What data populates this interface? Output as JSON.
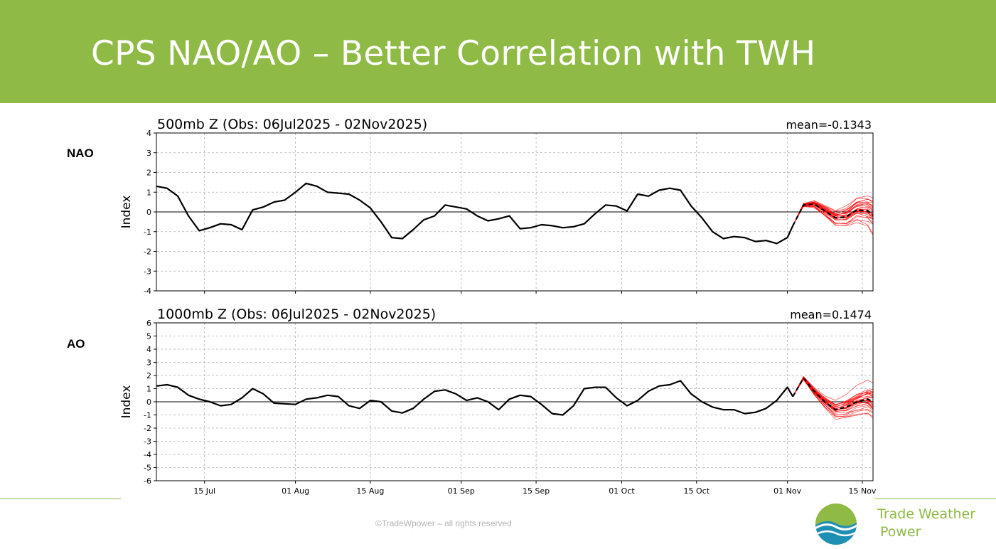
{
  "slide": {
    "title": "CPS NAO/AO – Better Correlation with TWH",
    "footer": "©TradeWpower – all rights reserved",
    "brand_line1": "Trade Weather",
    "brand_line2": "Power"
  },
  "colors": {
    "header": "#8fba45",
    "observed": "#000000",
    "ensemble": "#ff0000",
    "brand": "#8fba45",
    "logo_blue": "#1e90b4"
  },
  "chart_data": [
    {
      "type": "line",
      "side_label": "NAO",
      "title": "500mb Z (Obs: 06Jul2025 - 02Nov2025)",
      "annotation": "mean=-0.1343",
      "ylabel": "Index",
      "xlabel": "",
      "ylim": [
        -4,
        4
      ],
      "yticks": [
        -4,
        -3,
        -2,
        -1,
        0,
        1,
        2,
        3,
        4
      ],
      "xlim": [
        "2025-07-06",
        "2025-11-17"
      ],
      "xtick_dates": [
        "2025-07-15",
        "2025-08-01",
        "2025-08-15",
        "2025-09-01",
        "2025-09-15",
        "2025-10-01",
        "2025-10-15",
        "2025-11-01",
        "2025-11-15"
      ],
      "xtick_labels": [
        "15 Jul",
        "01 Aug",
        "15 Aug",
        "01 Sep",
        "15 Sep",
        "01 Oct",
        "15 Oct",
        "01 Nov",
        "15 Nov"
      ],
      "grid": true,
      "observed": {
        "x": [
          "2025-07-06",
          "2025-07-08",
          "2025-07-10",
          "2025-07-12",
          "2025-07-14",
          "2025-07-16",
          "2025-07-18",
          "2025-07-20",
          "2025-07-22",
          "2025-07-24",
          "2025-07-26",
          "2025-07-28",
          "2025-07-30",
          "2025-08-01",
          "2025-08-03",
          "2025-08-05",
          "2025-08-07",
          "2025-08-09",
          "2025-08-11",
          "2025-08-13",
          "2025-08-15",
          "2025-08-17",
          "2025-08-19",
          "2025-08-21",
          "2025-08-23",
          "2025-08-25",
          "2025-08-27",
          "2025-08-29",
          "2025-08-31",
          "2025-09-02",
          "2025-09-04",
          "2025-09-06",
          "2025-09-08",
          "2025-09-10",
          "2025-09-12",
          "2025-09-14",
          "2025-09-16",
          "2025-09-18",
          "2025-09-20",
          "2025-09-22",
          "2025-09-24",
          "2025-09-26",
          "2025-09-28",
          "2025-09-30",
          "2025-10-02",
          "2025-10-04",
          "2025-10-06",
          "2025-10-08",
          "2025-10-10",
          "2025-10-12",
          "2025-10-14",
          "2025-10-16",
          "2025-10-18",
          "2025-10-20",
          "2025-10-22",
          "2025-10-24",
          "2025-10-26",
          "2025-10-28",
          "2025-10-30",
          "2025-11-01",
          "2025-11-02"
        ],
        "y": [
          1.3,
          1.2,
          0.8,
          -0.2,
          -0.95,
          -0.8,
          -0.6,
          -0.65,
          -0.9,
          0.1,
          0.25,
          0.5,
          0.6,
          1.0,
          1.45,
          1.3,
          1.0,
          0.95,
          0.9,
          0.6,
          0.2,
          -0.5,
          -1.3,
          -1.35,
          -0.9,
          -0.4,
          -0.2,
          0.35,
          0.25,
          0.15,
          -0.2,
          -0.45,
          -0.35,
          -0.2,
          -0.85,
          -0.8,
          -0.65,
          -0.7,
          -0.8,
          -0.75,
          -0.6,
          -0.1,
          0.35,
          0.3,
          0.05,
          0.9,
          0.8,
          1.1,
          1.2,
          1.1,
          0.3,
          -0.3,
          -1.0,
          -1.35,
          -1.25,
          -1.3,
          -1.5,
          -1.45,
          -1.6,
          -1.3,
          -0.7
        ]
      },
      "ensemble_mean": {
        "x": [
          "2025-11-02",
          "2025-11-04",
          "2025-11-06",
          "2025-11-08",
          "2025-11-10",
          "2025-11-12",
          "2025-11-14",
          "2025-11-16",
          "2025-11-17"
        ],
        "y": [
          -0.7,
          0.35,
          0.4,
          0.05,
          -0.3,
          -0.25,
          0.1,
          0.05,
          -0.15
        ]
      }
    },
    {
      "type": "line",
      "side_label": "AO",
      "title": "1000mb Z (Obs: 06Jul2025 - 02Nov2025)",
      "annotation": "mean=0.1474",
      "ylabel": "Index",
      "xlabel": "",
      "ylim": [
        -6,
        6
      ],
      "yticks": [
        -6,
        -5,
        -4,
        -3,
        -2,
        -1,
        0,
        1,
        2,
        3,
        4,
        5,
        6
      ],
      "xlim": [
        "2025-07-06",
        "2025-11-17"
      ],
      "xtick_dates": [
        "2025-07-15",
        "2025-08-01",
        "2025-08-15",
        "2025-09-01",
        "2025-09-15",
        "2025-10-01",
        "2025-10-15",
        "2025-11-01",
        "2025-11-15"
      ],
      "xtick_labels": [
        "15 Jul",
        "01 Aug",
        "15 Aug",
        "01 Sep",
        "15 Sep",
        "01 Oct",
        "15 Oct",
        "01 Nov",
        "15 Nov"
      ],
      "grid": true,
      "observed": {
        "x": [
          "2025-07-06",
          "2025-07-08",
          "2025-07-10",
          "2025-07-12",
          "2025-07-14",
          "2025-07-16",
          "2025-07-18",
          "2025-07-20",
          "2025-07-22",
          "2025-07-24",
          "2025-07-26",
          "2025-07-28",
          "2025-07-30",
          "2025-08-01",
          "2025-08-03",
          "2025-08-05",
          "2025-08-07",
          "2025-08-09",
          "2025-08-11",
          "2025-08-13",
          "2025-08-15",
          "2025-08-17",
          "2025-08-19",
          "2025-08-21",
          "2025-08-23",
          "2025-08-25",
          "2025-08-27",
          "2025-08-29",
          "2025-08-31",
          "2025-09-02",
          "2025-09-04",
          "2025-09-06",
          "2025-09-08",
          "2025-09-10",
          "2025-09-12",
          "2025-09-14",
          "2025-09-16",
          "2025-09-18",
          "2025-09-20",
          "2025-09-22",
          "2025-09-24",
          "2025-09-26",
          "2025-09-28",
          "2025-09-30",
          "2025-10-02",
          "2025-10-04",
          "2025-10-06",
          "2025-10-08",
          "2025-10-10",
          "2025-10-12",
          "2025-10-14",
          "2025-10-16",
          "2025-10-18",
          "2025-10-20",
          "2025-10-22",
          "2025-10-24",
          "2025-10-26",
          "2025-10-28",
          "2025-10-30",
          "2025-11-01",
          "2025-11-02"
        ],
        "y": [
          1.2,
          1.3,
          1.1,
          0.5,
          0.2,
          0.0,
          -0.3,
          -0.2,
          0.3,
          1.0,
          0.6,
          -0.1,
          -0.15,
          -0.2,
          0.2,
          0.3,
          0.5,
          0.4,
          -0.3,
          -0.5,
          0.1,
          0.0,
          -0.7,
          -0.85,
          -0.5,
          0.2,
          0.8,
          0.9,
          0.6,
          0.1,
          0.3,
          0.0,
          -0.6,
          0.2,
          0.5,
          0.4,
          -0.2,
          -0.9,
          -1.0,
          -0.3,
          1.0,
          1.1,
          1.1,
          0.3,
          -0.3,
          0.1,
          0.8,
          1.2,
          1.3,
          1.6,
          0.6,
          0.0,
          -0.4,
          -0.6,
          -0.6,
          -0.9,
          -0.8,
          -0.5,
          0.1,
          1.1,
          0.4
        ]
      },
      "ensemble_mean": {
        "x": [
          "2025-11-02",
          "2025-11-04",
          "2025-11-06",
          "2025-11-08",
          "2025-11-10",
          "2025-11-12",
          "2025-11-14",
          "2025-11-16",
          "2025-11-17"
        ],
        "y": [
          0.4,
          1.8,
          0.8,
          0.0,
          -0.6,
          -0.4,
          0.0,
          0.2,
          0.0
        ]
      }
    }
  ]
}
